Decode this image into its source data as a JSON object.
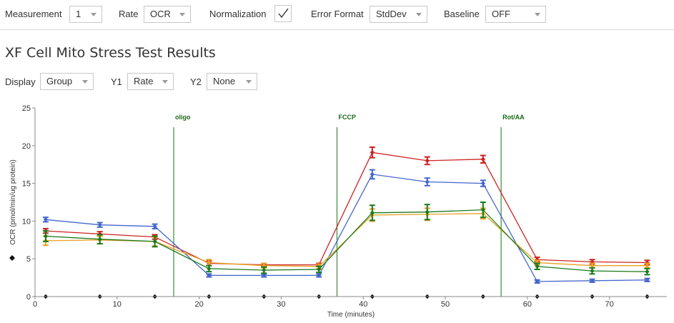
{
  "toolbar": {
    "measurement": {
      "label": "Measurement",
      "value": "1"
    },
    "rate": {
      "label": "Rate",
      "value": "OCR"
    },
    "normalization": {
      "label": "Normalization",
      "checked": true
    },
    "error_format": {
      "label": "Error Format",
      "value": "StdDev"
    },
    "baseline": {
      "label": "Baseline",
      "value": "OFF"
    }
  },
  "page_title": "XF Cell Mito Stress Test Results",
  "controls": {
    "display": {
      "label": "Display",
      "value": "Group"
    },
    "y1": {
      "label": "Y1",
      "value": "Rate"
    },
    "y2": {
      "label": "Y2",
      "value": "None"
    }
  },
  "chart_data": {
    "type": "line",
    "xlabel": "Time (minutes)",
    "ylabel": "OCR (pmol/min/ug protein)",
    "xlim": [
      0,
      77
    ],
    "ylim": [
      0,
      25
    ],
    "xticks": [
      0,
      10,
      20,
      30,
      40,
      50,
      60,
      70
    ],
    "yticks": [
      0,
      5,
      10,
      15,
      20,
      25
    ],
    "x": [
      1.3,
      7.9,
      14.6,
      21.2,
      27.9,
      34.6,
      41.1,
      47.8,
      54.6,
      61.2,
      67.9,
      74.6
    ],
    "injections": [
      {
        "label": "oligo",
        "x": 16.9
      },
      {
        "label": "FCCP",
        "x": 36.8
      },
      {
        "label": "Rot/AA",
        "x": 56.8
      }
    ],
    "series": [
      {
        "color": "#cc2222",
        "values": [
          8.7,
          8.3,
          7.9,
          4.4,
          4.2,
          4.2,
          19.1,
          18.0,
          18.2,
          4.9,
          4.6,
          4.5
        ],
        "errors": [
          0.3,
          0.3,
          0.3,
          0.3,
          0.2,
          0.2,
          0.7,
          0.5,
          0.5,
          0.3,
          0.3,
          0.3
        ]
      },
      {
        "color": "#4466cc",
        "values": [
          10.2,
          9.5,
          9.3,
          2.8,
          2.8,
          2.8,
          16.2,
          15.2,
          15.0,
          2.0,
          2.1,
          2.2
        ],
        "errors": [
          0.3,
          0.3,
          0.3,
          0.2,
          0.2,
          0.2,
          0.6,
          0.5,
          0.4,
          0.2,
          0.2,
          0.2
        ]
      },
      {
        "color": "#e8a020",
        "values": [
          7.4,
          7.5,
          7.3,
          4.5,
          4.1,
          4.0,
          10.8,
          10.9,
          11.0,
          4.5,
          4.1,
          4.1
        ],
        "errors": [
          0.6,
          0.5,
          0.6,
          0.4,
          0.3,
          0.3,
          0.8,
          0.8,
          0.7,
          0.3,
          0.3,
          0.3
        ]
      },
      {
        "color": "#1a7a1a",
        "values": [
          8.0,
          7.6,
          7.3,
          3.7,
          3.5,
          3.6,
          11.1,
          11.2,
          11.5,
          4.0,
          3.4,
          3.3
        ],
        "errors": [
          0.7,
          0.6,
          0.7,
          0.4,
          0.4,
          0.4,
          1.0,
          1.0,
          1.0,
          0.4,
          0.4,
          0.4
        ]
      },
      {
        "color": "#111111",
        "values": [
          0,
          0,
          0,
          0,
          0,
          0,
          0,
          0,
          0,
          0,
          0,
          0
        ],
        "errors": [
          0,
          0,
          0,
          0,
          0,
          0,
          0,
          0,
          0,
          0,
          0,
          0
        ]
      }
    ]
  }
}
